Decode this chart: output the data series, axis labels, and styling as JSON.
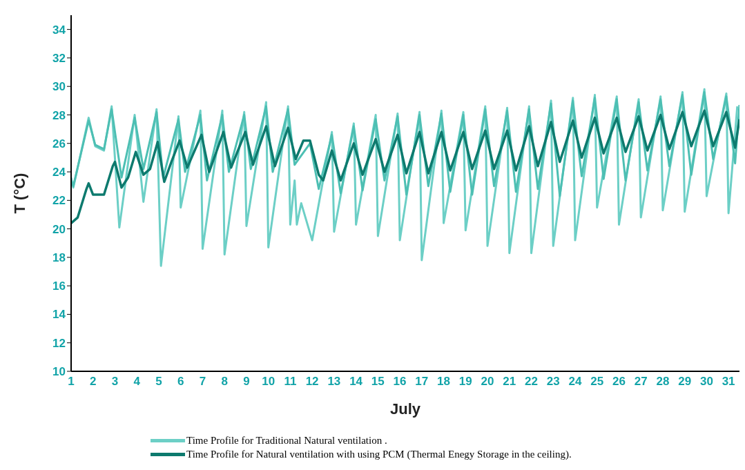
{
  "chart_data": {
    "type": "line",
    "xlabel": "July",
    "ylabel": "T (°C)",
    "xlim": [
      1,
      31.5
    ],
    "xticks": [
      1,
      2,
      3,
      4,
      5,
      6,
      7,
      8,
      9,
      10,
      11,
      12,
      13,
      14,
      15,
      16,
      17,
      18,
      19,
      20,
      21,
      22,
      23,
      24,
      25,
      26,
      27,
      28,
      29,
      30,
      31
    ],
    "ylim": [
      10,
      35
    ],
    "yticks": [
      10,
      12,
      14,
      16,
      18,
      20,
      22,
      24,
      26,
      28,
      30,
      32,
      34
    ],
    "grid": false,
    "legend": "bottom",
    "marker": "none",
    "line_style": "solid",
    "series": [
      {
        "name": "Time Profile for Traditional Natural ventilation .",
        "color": "#6ccfc6",
        "x": [
          1,
          1.1,
          1.8,
          2.1,
          2.5,
          2.85,
          3.2,
          3.9,
          4.3,
          4.9,
          5.1,
          5.9,
          6.0,
          6.9,
          7.0,
          7.9,
          8.0,
          8.9,
          9.0,
          9.9,
          10.0,
          10.9,
          11.0,
          11.2,
          11.3,
          11.5,
          12.0,
          12.9,
          13.0,
          13.9,
          14.0,
          14.9,
          15.0,
          15.9,
          16.0,
          16.9,
          17.0,
          17.9,
          18.0,
          18.9,
          19.0,
          19.9,
          20.0,
          20.9,
          21.0,
          21.9,
          22.0,
          22.9,
          23.0,
          23.9,
          24.0,
          24.9,
          25.0,
          25.9,
          26.0,
          26.9,
          27.0,
          27.9,
          28.0,
          28.9,
          29.0,
          29.9,
          30.0,
          30.9,
          31.0,
          31.4
        ],
        "values": [
          23.6,
          22.9,
          27.8,
          25.8,
          25.5,
          28.6,
          20.1,
          28.0,
          21.9,
          28.4,
          17.4,
          27.9,
          21.5,
          28.3,
          18.6,
          28.3,
          18.2,
          28.2,
          20.2,
          28.9,
          18.7,
          28.6,
          20.3,
          23.4,
          20.3,
          21.8,
          19.2,
          26.8,
          19.8,
          27.4,
          20.3,
          28.0,
          19.5,
          28.1,
          19.2,
          28.2,
          17.8,
          28.3,
          20.4,
          28.2,
          19.9,
          28.6,
          18.8,
          28.5,
          18.3,
          28.6,
          18.3,
          29.0,
          18.8,
          29.2,
          19.2,
          29.4,
          21.5,
          29.3,
          20.3,
          29.1,
          20.8,
          29.3,
          21.3,
          29.6,
          21.2,
          29.8,
          22.3,
          29.5,
          21.1,
          28.6
        ]
      },
      {
        "color": "#4dbfb3",
        "x": [
          1,
          1.1,
          1.8,
          2.1,
          2.5,
          2.85,
          3.3,
          3.9,
          4.3,
          4.9,
          5.2,
          5.9,
          6.2,
          6.9,
          7.2,
          7.9,
          8.2,
          8.9,
          9.2,
          9.9,
          10.2,
          10.9,
          11.2,
          11.9,
          12.3,
          12.9,
          13.3,
          13.9,
          14.3,
          14.9,
          15.3,
          15.9,
          16.3,
          16.9,
          17.3,
          17.9,
          18.3,
          18.9,
          19.3,
          19.9,
          20.3,
          20.9,
          21.3,
          21.9,
          22.3,
          22.9,
          23.3,
          23.9,
          24.3,
          24.9,
          25.3,
          25.9,
          26.3,
          26.9,
          27.3,
          27.9,
          28.3,
          28.9,
          29.3,
          29.9,
          30.3,
          30.9,
          31.3,
          31.5
        ],
        "values": [
          23.4,
          23.0,
          27.6,
          25.9,
          25.6,
          28.4,
          23.6,
          27.8,
          24.2,
          28.2,
          23.6,
          27.7,
          24.0,
          28.0,
          23.4,
          28.0,
          24.0,
          28.0,
          24.2,
          28.6,
          24.0,
          28.4,
          24.5,
          26.0,
          22.8,
          26.6,
          22.5,
          27.2,
          22.7,
          27.7,
          23.4,
          27.9,
          22.4,
          28.0,
          23.0,
          28.1,
          22.6,
          28.0,
          22.4,
          28.4,
          23.0,
          28.3,
          22.6,
          28.4,
          22.8,
          28.8,
          22.3,
          29.0,
          23.7,
          29.2,
          23.5,
          29.1,
          23.4,
          28.9,
          24.1,
          29.1,
          24.4,
          29.4,
          23.8,
          29.6,
          24.9,
          29.3,
          24.6,
          28.7
        ]
      },
      {
        "name": "Time Profile for Natural ventilation with using PCM (Thermal Enegy Storage in the ceiling).",
        "color": "#0d7a6e",
        "x": [
          1,
          1.3,
          1.7,
          1.8,
          2.0,
          2.5,
          2.9,
          3.0,
          3.3,
          3.6,
          3.95,
          4.3,
          4.6,
          4.95,
          5.25,
          5.6,
          5.95,
          6.3,
          6.95,
          7.3,
          7.95,
          8.3,
          8.95,
          9.3,
          9.9,
          10.3,
          10.9,
          11.25,
          11.6,
          11.9,
          12.3,
          12.5,
          12.9,
          13.3,
          13.9,
          14.3,
          14.9,
          15.3,
          15.9,
          16.3,
          16.9,
          17.3,
          17.9,
          18.3,
          18.9,
          19.3,
          19.9,
          20.3,
          20.9,
          21.3,
          21.9,
          22.3,
          22.9,
          23.3,
          23.9,
          24.3,
          24.9,
          25.3,
          25.9,
          26.3,
          26.9,
          27.3,
          27.9,
          28.3,
          28.9,
          29.3,
          29.9,
          30.3,
          30.9,
          31.3,
          31.5
        ],
        "values": [
          20.4,
          20.8,
          22.8,
          23.2,
          22.4,
          22.4,
          24.4,
          24.7,
          22.9,
          23.6,
          25.4,
          23.8,
          24.2,
          26.1,
          23.3,
          24.8,
          26.2,
          24.3,
          26.6,
          24.0,
          26.8,
          24.3,
          26.8,
          24.5,
          27.2,
          24.4,
          27.1,
          24.9,
          26.2,
          26.2,
          23.8,
          23.4,
          25.5,
          23.4,
          26.0,
          23.8,
          26.3,
          24.0,
          26.6,
          23.9,
          26.8,
          23.9,
          26.8,
          24.1,
          26.8,
          24.2,
          26.9,
          24.2,
          26.9,
          24.1,
          27.2,
          24.4,
          27.5,
          24.7,
          27.6,
          25.0,
          27.8,
          25.3,
          27.8,
          25.4,
          27.9,
          25.5,
          28.0,
          25.6,
          28.2,
          25.8,
          28.3,
          25.8,
          28.2,
          25.7,
          27.7
        ]
      }
    ]
  }
}
